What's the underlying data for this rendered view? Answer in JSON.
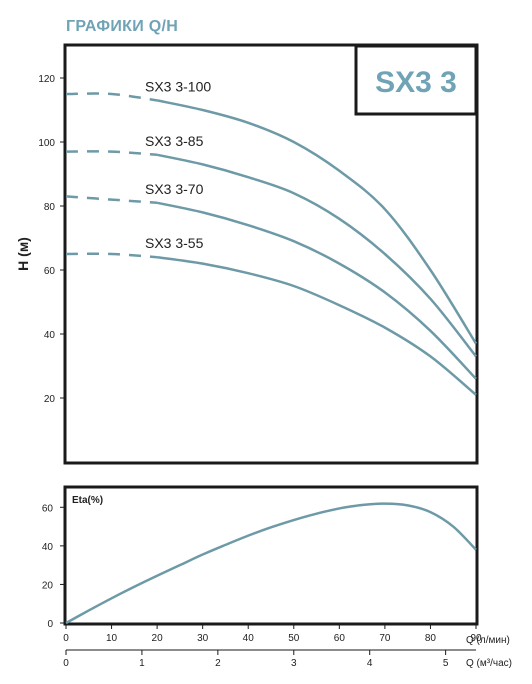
{
  "page": {
    "title": "ГРАФИКИ Q/H"
  },
  "chart_data": [
    {
      "type": "line",
      "model_label": "SX3 3",
      "ylabel": "H (м)",
      "ylim": [
        0,
        130
      ],
      "yticks": [
        20,
        40,
        60,
        80,
        100,
        120
      ],
      "xlim": [
        0,
        90
      ],
      "line_color": "#6d9aa6",
      "series": [
        {
          "name": "SX3 3-100",
          "label": "SX3 3-100",
          "x": [
            0,
            10,
            20,
            30,
            40,
            50,
            60,
            70,
            80,
            90
          ],
          "y": [
            115,
            115,
            113,
            110,
            106,
            100,
            91,
            79,
            60,
            37
          ],
          "dashed_until": 20
        },
        {
          "name": "SX3 3-85",
          "label": "SX3 3-85",
          "x": [
            0,
            10,
            20,
            30,
            40,
            50,
            60,
            70,
            80,
            90
          ],
          "y": [
            97,
            97,
            96,
            93,
            89,
            84,
            76,
            65,
            51,
            33
          ],
          "dashed_until": 20
        },
        {
          "name": "SX3 3-70",
          "label": "SX3 3-70",
          "x": [
            0,
            10,
            20,
            30,
            40,
            50,
            60,
            70,
            80,
            90
          ],
          "y": [
            83,
            82,
            81,
            78,
            74,
            69,
            62,
            53,
            41,
            26
          ],
          "dashed_until": 20
        },
        {
          "name": "SX3 3-55",
          "label": "SX3 3-55",
          "x": [
            0,
            10,
            20,
            30,
            40,
            50,
            60,
            70,
            80,
            90
          ],
          "y": [
            65,
            65,
            64,
            62,
            59,
            55,
            49,
            42,
            33,
            21
          ],
          "dashed_until": 20
        }
      ]
    },
    {
      "type": "line",
      "ylabel": "Eta(%)",
      "ylim": [
        0,
        70
      ],
      "yticks": [
        0,
        20,
        40,
        60
      ],
      "xlim": [
        0,
        90
      ],
      "xlabel": "Q (л/мин)",
      "xticks": [
        0,
        10,
        20,
        30,
        40,
        50,
        60,
        70,
        80,
        90
      ],
      "x2label": "Q (м³/час)",
      "x2lim": [
        0,
        5.4
      ],
      "x2ticks": [
        0,
        1,
        2,
        3,
        4,
        5
      ],
      "line_color": "#6d9aa6",
      "series": [
        {
          "x": [
            0,
            5,
            10,
            15,
            20,
            25,
            30,
            35,
            40,
            45,
            50,
            55,
            60,
            62,
            65,
            70,
            75,
            80,
            85,
            90
          ],
          "y": [
            0,
            6.5,
            12.8,
            18.8,
            24.5,
            30,
            35.5,
            40.5,
            45.3,
            49.6,
            53.4,
            56.7,
            59.4,
            60.2,
            61.2,
            61.9,
            61,
            57.5,
            50,
            38
          ]
        }
      ]
    }
  ]
}
